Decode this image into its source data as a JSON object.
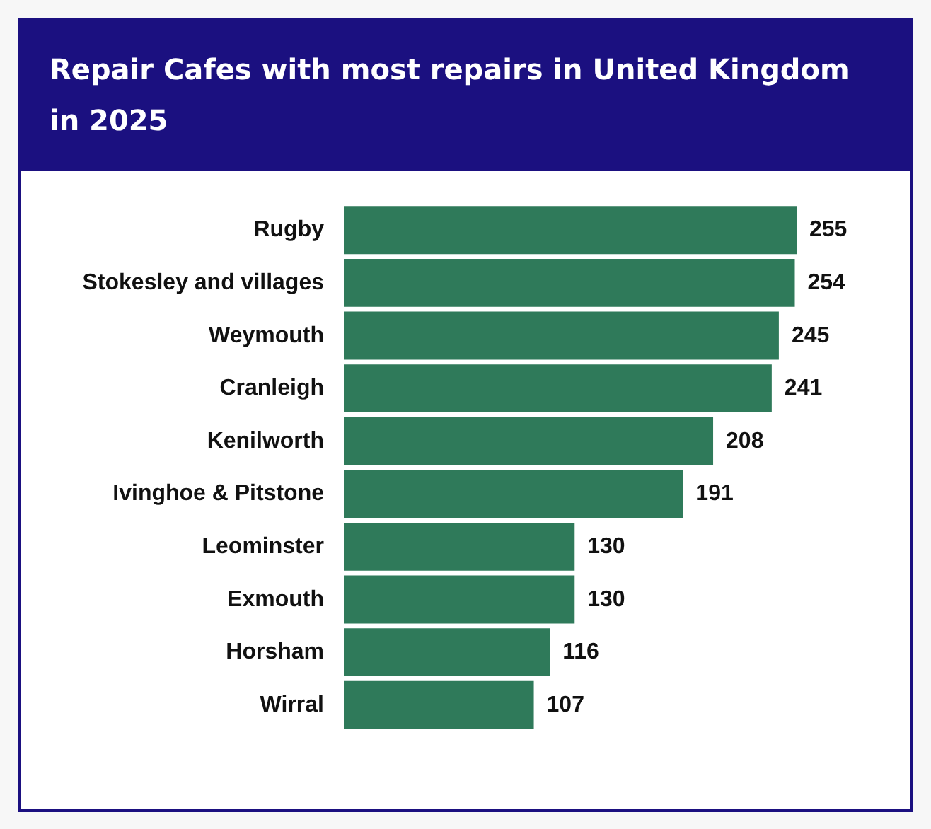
{
  "chart_data": {
    "type": "bar",
    "orientation": "horizontal",
    "title": "Repair Cafes with most repairs in United Kingdom in 2025",
    "categories": [
      "Rugby",
      "Stokesley and villages",
      "Weymouth",
      "Cranleigh",
      "Kenilworth",
      "Ivinghoe & Pitstone",
      "Leominster",
      "Exmouth",
      "Horsham",
      "Wirral"
    ],
    "values": [
      255,
      254,
      245,
      241,
      208,
      191,
      130,
      130,
      116,
      107
    ],
    "color": "#2f7a5a",
    "data_labels": true
  }
}
